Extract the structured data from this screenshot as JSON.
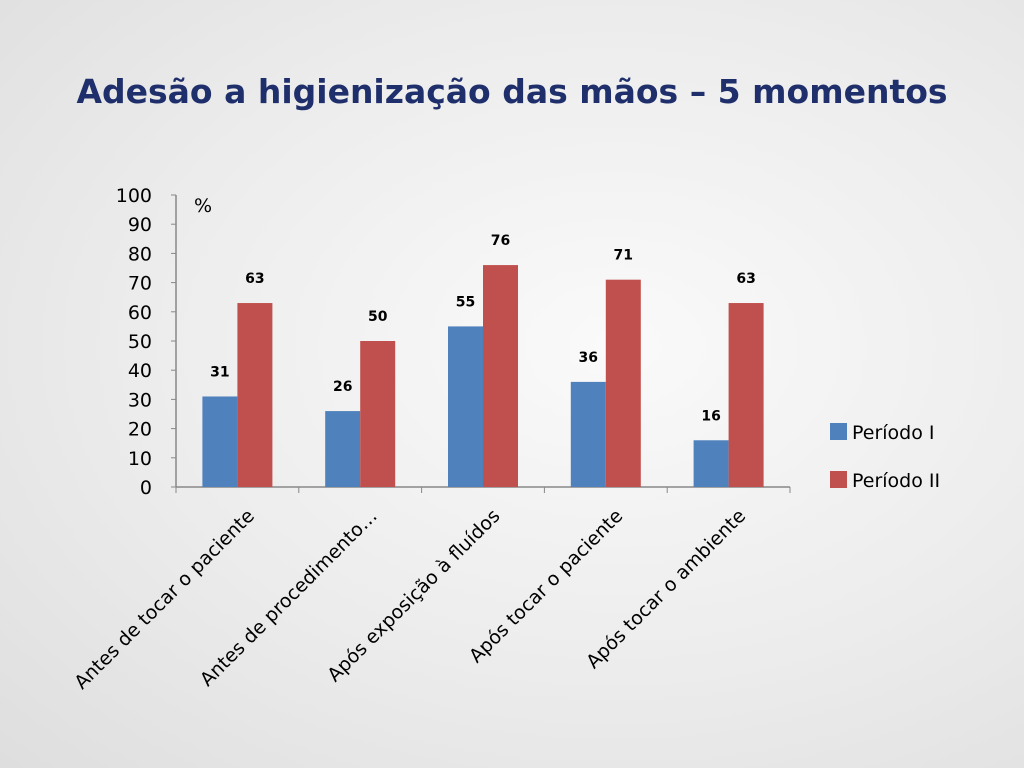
{
  "slide": {
    "title": "Adesão a higienização das mãos – 5 momentos"
  },
  "colors": {
    "series_1": "#4f81bd",
    "series_2": "#c0504d",
    "axis": "#888888",
    "title": "#1f2f6b"
  },
  "chart_data": {
    "type": "bar",
    "title": "",
    "xlabel": "",
    "ylabel": "",
    "unit_label": "%",
    "categories": [
      "Antes de tocar o paciente",
      "Antes de procedimento…",
      "Após exposição à fluídos",
      "Após tocar o paciente",
      "Após tocar o ambiente"
    ],
    "series": [
      {
        "name": "Período I",
        "values": [
          31,
          26,
          55,
          36,
          16
        ]
      },
      {
        "name": "Período II",
        "values": [
          63,
          50,
          76,
          71,
          63
        ]
      }
    ],
    "ylim": [
      0,
      100
    ],
    "yticks": [
      0,
      10,
      20,
      30,
      40,
      50,
      60,
      70,
      80,
      90,
      100
    ],
    "grid": false,
    "legend": "right"
  }
}
